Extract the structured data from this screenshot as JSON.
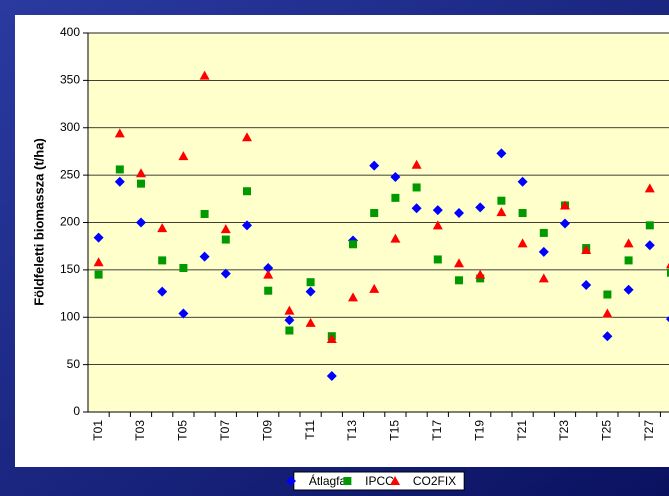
{
  "chart_data": {
    "type": "scatter",
    "y_label": "Földfeletti biomassza (t/ha)",
    "categories": [
      "T01",
      null,
      "T03",
      null,
      "T05",
      null,
      "T07",
      null,
      "T09",
      null,
      "T11",
      null,
      "T13",
      null,
      "T15",
      null,
      "T17",
      null,
      "T19",
      null,
      "T21",
      null,
      "T23",
      null,
      "T25",
      null,
      "T27",
      null
    ],
    "series": [
      {
        "name": "Átlagfa",
        "color": "#0000ff",
        "marker": "diamond",
        "values": [
          184,
          243,
          200,
          127,
          104,
          164,
          146,
          197,
          152,
          97,
          127,
          38,
          181,
          260,
          248,
          215,
          213,
          210,
          216,
          273,
          243,
          169,
          199,
          134,
          80,
          129,
          176,
          98
        ]
      },
      {
        "name": "IPCC",
        "color": "#009900",
        "marker": "square",
        "values": [
          145,
          256,
          241,
          160,
          152,
          209,
          182,
          233,
          128,
          86,
          137,
          80,
          177,
          210,
          226,
          237,
          161,
          139,
          141,
          223,
          210,
          189,
          218,
          173,
          124,
          160,
          197,
          147
        ]
      },
      {
        "name": "CO2FIX",
        "color": "#ff0000",
        "marker": "triangle",
        "values": [
          158,
          294,
          252,
          194,
          270,
          355,
          193,
          290,
          145,
          107,
          94,
          77,
          121,
          130,
          183,
          261,
          197,
          157,
          145,
          211,
          178,
          141,
          218,
          171,
          104,
          178,
          236,
          156
        ]
      }
    ],
    "ylim": [
      0,
      400
    ],
    "yticks": [
      0,
      50,
      100,
      150,
      200,
      250,
      300,
      350,
      400
    ],
    "grid": true,
    "legend": "bottom"
  }
}
